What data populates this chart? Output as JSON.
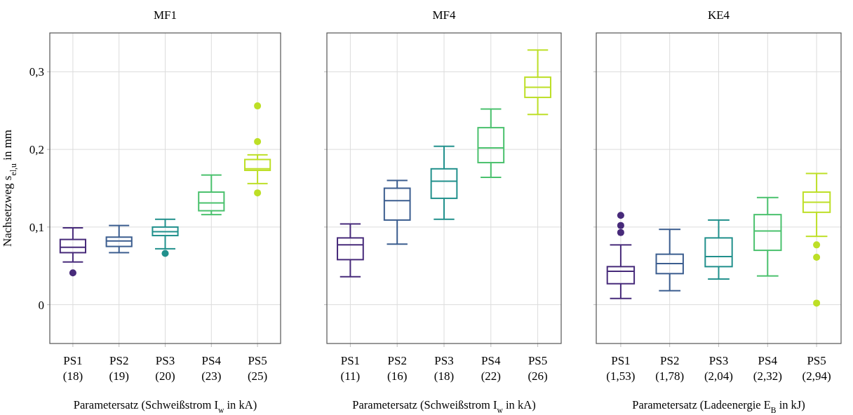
{
  "chart_data": [
    {
      "type": "box",
      "title": "MF1",
      "ylabel": "Nachsetzweg s$_{el,u}$ in mm",
      "xlabel": "Parametersatz (Schweißstrom I$_{w}$ in kA)",
      "categories": [
        "PS1 (18)",
        "PS2 (19)",
        "PS3 (20)",
        "PS4 (23)",
        "PS5 (25)"
      ],
      "colors": [
        "#472a7a",
        "#3b5d8f",
        "#21908c",
        "#4ac16d",
        "#bddf26"
      ],
      "ylim": [
        -0.05,
        0.35
      ],
      "yticks": [
        0,
        {
          "value": 0.1,
          "label": "0,1"
        },
        {
          "value": 0.2,
          "label": "0,2"
        },
        {
          "value": 0.3,
          "label": "0,3"
        }
      ],
      "grid": true,
      "boxes": [
        {
          "low": 0.055,
          "q1": 0.067,
          "median": 0.074,
          "q3": 0.084,
          "high": 0.099,
          "outliers": [
            0.041
          ]
        },
        {
          "low": 0.067,
          "q1": 0.075,
          "median": 0.082,
          "q3": 0.087,
          "high": 0.102
        },
        {
          "low": 0.072,
          "q1": 0.089,
          "median": 0.094,
          "q3": 0.1,
          "high": 0.11,
          "outliers": [
            0.066
          ]
        },
        {
          "low": 0.116,
          "q1": 0.121,
          "median": 0.131,
          "q3": 0.145,
          "high": 0.167
        },
        {
          "low": 0.156,
          "q1": 0.173,
          "median": 0.175,
          "q3": 0.187,
          "high": 0.193,
          "outliers": [
            0.256,
            0.21,
            0.144
          ]
        }
      ]
    },
    {
      "type": "box",
      "title": "MF4",
      "xlabel": "Parametersatz (Schweißstrom I$_{w}$ in kA)",
      "categories": [
        "PS1 (11)",
        "PS2 (16)",
        "PS3 (18)",
        "PS4 (22)",
        "PS5 (26)"
      ],
      "colors": [
        "#472a7a",
        "#3b5d8f",
        "#21908c",
        "#4ac16d",
        "#bddf26"
      ],
      "ylim": [
        -0.05,
        0.35
      ],
      "yticks": [
        0,
        0.1,
        0.2,
        0.3
      ],
      "grid": true,
      "tick_labels": "x",
      "boxes": [
        {
          "low": 0.036,
          "q1": 0.058,
          "median": 0.077,
          "q3": 0.086,
          "high": 0.104
        },
        {
          "low": 0.078,
          "q1": 0.109,
          "median": 0.134,
          "q3": 0.15,
          "high": 0.16
        },
        {
          "low": 0.11,
          "q1": 0.137,
          "median": 0.159,
          "q3": 0.175,
          "high": 0.204
        },
        {
          "low": 0.164,
          "q1": 0.183,
          "median": 0.202,
          "q3": 0.228,
          "high": 0.252
        },
        {
          "low": 0.245,
          "q1": 0.267,
          "median": 0.28,
          "q3": 0.293,
          "high": 0.328
        }
      ]
    },
    {
      "type": "box",
      "title": "KE4",
      "xlabel": "Parametersatz (Ladeenergie E$_{B}$ in kJ)",
      "categories": [
        "PS1 (1,53)",
        "PS2 (1,78)",
        "PS3 (2,04)",
        "PS4 (2,32)",
        "PS5 (2,94)"
      ],
      "colors": [
        "#472a7a",
        "#3b5d8f",
        "#21908c",
        "#4ac16d",
        "#bddf26"
      ],
      "ylim": [
        -0.05,
        0.35
      ],
      "yticks": [
        0,
        0.1,
        0.2,
        0.3
      ],
      "grid": true,
      "tick_labels": "x",
      "boxes": [
        {
          "low": 0.008,
          "q1": 0.027,
          "median": 0.043,
          "q3": 0.049,
          "high": 0.077,
          "outliers": [
            0.115,
            0.102,
            0.093
          ]
        },
        {
          "low": 0.018,
          "q1": 0.04,
          "median": 0.053,
          "q3": 0.065,
          "high": 0.097
        },
        {
          "low": 0.033,
          "q1": 0.049,
          "median": 0.062,
          "q3": 0.086,
          "high": 0.109
        },
        {
          "low": 0.037,
          "q1": 0.07,
          "median": 0.095,
          "q3": 0.116,
          "high": 0.138
        },
        {
          "low": 0.088,
          "q1": 0.119,
          "median": 0.132,
          "q3": 0.145,
          "high": 0.169,
          "outliers": [
            0.077,
            0.061,
            0.002
          ]
        }
      ]
    }
  ]
}
